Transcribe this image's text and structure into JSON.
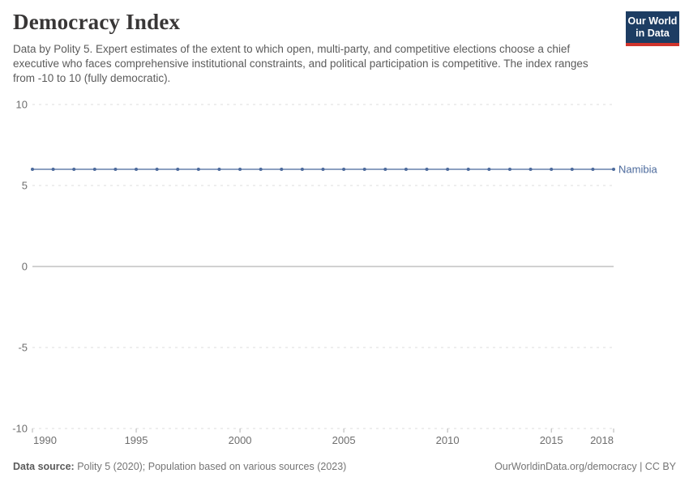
{
  "header": {
    "title": "Democracy Index",
    "subtitle": "Data by Polity 5. Expert estimates of the extent to which open, multi-party, and competitive elections choose a chief executive who faces comprehensive institutional constraints, and political participation is competitive. The index ranges from -10 to 10 (fully democratic).",
    "logo": {
      "line1": "Our World",
      "line2": "in Data",
      "bg_color": "#1d3d63",
      "accent_color": "#d0342c"
    }
  },
  "chart_data": {
    "type": "line",
    "title": "Democracy Index",
    "x": [
      1990,
      1991,
      1992,
      1993,
      1994,
      1995,
      1996,
      1997,
      1998,
      1999,
      2000,
      2001,
      2002,
      2003,
      2004,
      2005,
      2006,
      2007,
      2008,
      2009,
      2010,
      2011,
      2012,
      2013,
      2014,
      2015,
      2016,
      2017,
      2018
    ],
    "series": [
      {
        "name": "Namibia",
        "color": "#4C6A9C",
        "values": [
          6,
          6,
          6,
          6,
          6,
          6,
          6,
          6,
          6,
          6,
          6,
          6,
          6,
          6,
          6,
          6,
          6,
          6,
          6,
          6,
          6,
          6,
          6,
          6,
          6,
          6,
          6,
          6,
          6
        ]
      }
    ],
    "xlabel": "",
    "ylabel": "",
    "ylim": [
      -10,
      10
    ],
    "xlim": [
      1990,
      2018
    ],
    "yticks": [
      10,
      5,
      0,
      -5,
      -10
    ],
    "xticks": [
      1990,
      1995,
      2000,
      2005,
      2010,
      2015,
      2018
    ],
    "grid": "horizontal dashed gridlines, solid zero line",
    "legend_position": "label at right end of line",
    "style": {
      "grid_color": "#dedede",
      "zero_line_color": "#a3a3a3",
      "tick_color": "#b3b3b3",
      "axis_label_color": "#6e6e6e"
    }
  },
  "footer": {
    "data_source_label": "Data source:",
    "data_source_text": " Polity 5 (2020); Population based on various sources (2023)",
    "attribution": "OurWorldinData.org/democracy | CC BY"
  }
}
